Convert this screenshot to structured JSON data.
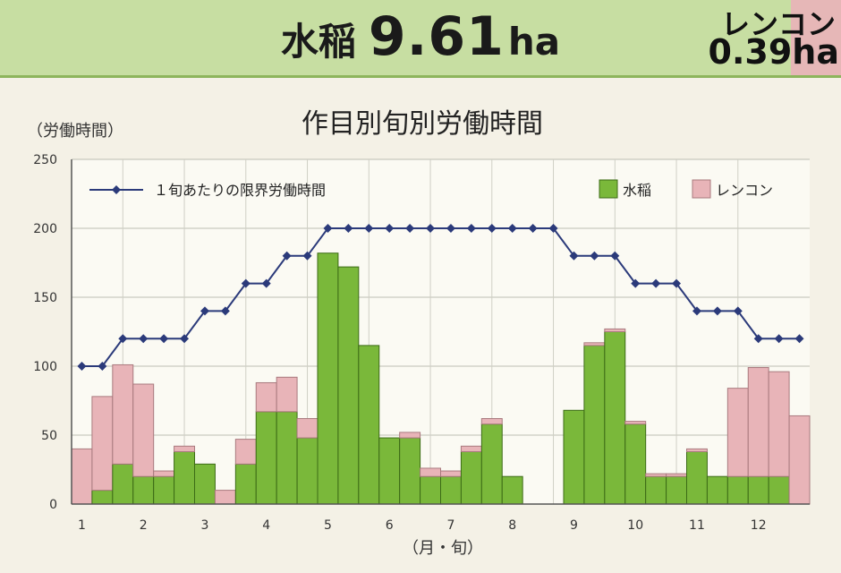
{
  "header": {
    "crop": "水稲",
    "area_value": "9.61",
    "area_unit": "ha",
    "lotus_label": "レンコン",
    "lotus_area": "0.39ha"
  },
  "colors": {
    "header_bg": "#c7dea2",
    "rice": "#7ab83a",
    "lotus": "#e8b4b8",
    "limit_line": "#2b3a7a"
  },
  "chart_data": {
    "type": "bar",
    "title": "作目別旬別労働時間",
    "ylabel": "（労働時間）",
    "xlabel": "（月・旬）",
    "ylim": [
      0,
      250
    ],
    "yticks": [
      0,
      50,
      100,
      150,
      200,
      250
    ],
    "grid": true,
    "stacked": true,
    "legend_position": "top",
    "month_labels": [
      "1",
      "2",
      "3",
      "4",
      "5",
      "6",
      "7",
      "8",
      "9",
      "10",
      "11",
      "12"
    ],
    "series": [
      {
        "name": "水稲",
        "values": [
          0,
          10,
          29,
          20,
          20,
          38,
          29,
          0,
          29,
          67,
          67,
          48,
          182,
          172,
          115,
          48,
          48,
          20,
          20,
          38,
          58,
          20,
          0,
          0,
          68,
          115,
          125,
          58,
          20,
          20,
          38,
          20,
          20,
          20,
          20,
          0
        ]
      },
      {
        "name": "レンコン",
        "values": [
          40,
          68,
          72,
          67,
          4,
          4,
          0,
          10,
          18,
          21,
          25,
          14,
          0,
          0,
          0,
          0,
          4,
          6,
          4,
          4,
          4,
          0,
          0,
          0,
          0,
          2,
          2,
          2,
          2,
          2,
          2,
          0,
          64,
          79,
          76,
          64
        ]
      }
    ],
    "line": {
      "name": "１旬あたりの限界労働時間",
      "values": [
        100,
        100,
        120,
        120,
        120,
        120,
        140,
        140,
        160,
        160,
        180,
        180,
        200,
        200,
        200,
        200,
        200,
        200,
        200,
        200,
        200,
        200,
        200,
        200,
        180,
        180,
        180,
        160,
        160,
        160,
        140,
        140,
        140,
        120,
        120,
        120
      ]
    }
  }
}
